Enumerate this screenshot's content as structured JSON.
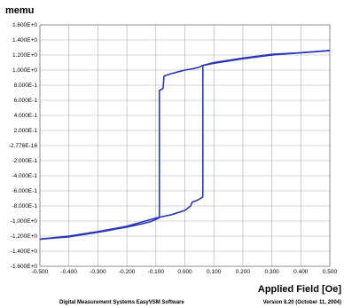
{
  "chart_data": {
    "type": "line",
    "y_unit_label": "memu",
    "xlabel": "Applied Field [Oe]",
    "xlim": [
      -0.5,
      0.5
    ],
    "ylim": [
      -1.6,
      1.6
    ],
    "x_ticks": [
      "-0.500",
      "-0.400",
      "-0.300",
      "-0.200",
      "-0.100",
      "0.000",
      "0.100",
      "0.200",
      "0.300",
      "0.400",
      "0.500"
    ],
    "y_ticks": [
      "1.600E+0",
      "1.400E+0",
      "1.200E+0",
      "1.000E+0",
      "8.000E-1",
      "6.000E-1",
      "4.000E-1",
      "2.000E-1",
      "-2.776E-16",
      "-2.000E-1",
      "-4.000E-1",
      "-6.000E-1",
      "-8.000E-1",
      "-1.000E+0",
      "-1.200E+0",
      "-1.400E+0",
      "-1.600E+0"
    ],
    "grid": true,
    "series": [
      {
        "color": "#2a36b6",
        "x": [
          -0.5,
          -0.4,
          -0.3,
          -0.2,
          -0.15,
          -0.12,
          -0.1,
          -0.09,
          -0.088,
          -0.088,
          -0.078,
          -0.075,
          -0.072,
          -0.05,
          -0.02,
          0.0,
          0.03,
          0.05,
          0.06,
          0.1,
          0.2,
          0.3,
          0.4,
          0.5
        ],
        "y": [
          -1.24,
          -1.21,
          -1.15,
          -1.08,
          -1.04,
          -1.01,
          -0.98,
          -0.96,
          -0.95,
          0.73,
          0.75,
          0.76,
          0.92,
          0.95,
          0.98,
          1.0,
          1.02,
          1.04,
          1.06,
          1.09,
          1.15,
          1.2,
          1.23,
          1.26
        ]
      },
      {
        "color": "#2a36b6",
        "x": [
          0.5,
          0.4,
          0.3,
          0.2,
          0.1,
          0.07,
          0.062,
          0.062,
          0.05,
          0.04,
          0.025,
          0.02,
          0.0,
          -0.05,
          -0.1,
          -0.2,
          -0.3,
          -0.4,
          -0.5
        ],
        "y": [
          1.26,
          1.23,
          1.21,
          1.16,
          1.1,
          1.07,
          1.06,
          -0.68,
          -0.71,
          -0.73,
          -0.75,
          -0.8,
          -0.86,
          -0.92,
          -0.96,
          -1.07,
          -1.14,
          -1.2,
          -1.24
        ]
      }
    ]
  },
  "footer": {
    "software": "Digital Measurement Systems EasyVSM Software",
    "version": "Version 8.20 (October 11,  2004)"
  }
}
